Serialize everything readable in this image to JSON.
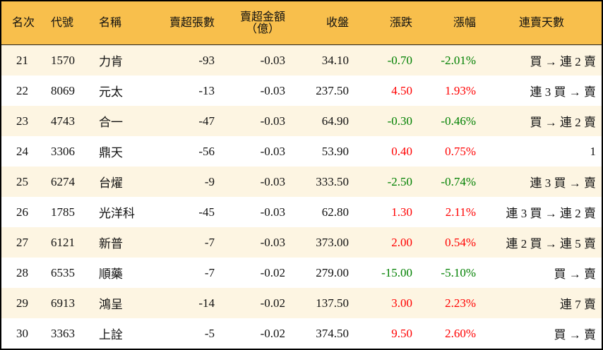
{
  "headers": {
    "rank": "名次",
    "code": "代號",
    "name": "名稱",
    "shares": "賣超張數",
    "amount": "賣超金額",
    "amount_unit": "（億）",
    "close": "收盤",
    "change": "漲跌",
    "pct": "漲幅",
    "streak": "連賣天數"
  },
  "colors": {
    "header_bg": "#f8bf4c",
    "stripe_bg": "#fdf5e2",
    "up": "#ff0000",
    "down": "#008000"
  },
  "rows": [
    {
      "rank": "21",
      "code": "1570",
      "name": "力肯",
      "shares": "-93",
      "amount": "-0.03",
      "close": "34.10",
      "change": "-0.70",
      "pct": "-2.01%",
      "streak": "買 → 連 2 賣",
      "dir": "down"
    },
    {
      "rank": "22",
      "code": "8069",
      "name": "元太",
      "shares": "-13",
      "amount": "-0.03",
      "close": "237.50",
      "change": "4.50",
      "pct": "1.93%",
      "streak": "連 3 買 → 賣",
      "dir": "up"
    },
    {
      "rank": "23",
      "code": "4743",
      "name": "合一",
      "shares": "-47",
      "amount": "-0.03",
      "close": "64.90",
      "change": "-0.30",
      "pct": "-0.46%",
      "streak": "買 → 連 2 賣",
      "dir": "down"
    },
    {
      "rank": "24",
      "code": "3306",
      "name": "鼎天",
      "shares": "-56",
      "amount": "-0.03",
      "close": "53.90",
      "change": "0.40",
      "pct": "0.75%",
      "streak": "1",
      "dir": "up"
    },
    {
      "rank": "25",
      "code": "6274",
      "name": "台燿",
      "shares": "-9",
      "amount": "-0.03",
      "close": "333.50",
      "change": "-2.50",
      "pct": "-0.74%",
      "streak": "連 3 買 → 賣",
      "dir": "down"
    },
    {
      "rank": "26",
      "code": "1785",
      "name": "光洋科",
      "shares": "-45",
      "amount": "-0.03",
      "close": "62.80",
      "change": "1.30",
      "pct": "2.11%",
      "streak": "連 3 買 → 連 2 賣",
      "dir": "up"
    },
    {
      "rank": "27",
      "code": "6121",
      "name": "新普",
      "shares": "-7",
      "amount": "-0.03",
      "close": "373.00",
      "change": "2.00",
      "pct": "0.54%",
      "streak": "連 2 買 → 連 5 賣",
      "dir": "up"
    },
    {
      "rank": "28",
      "code": "6535",
      "name": "順藥",
      "shares": "-7",
      "amount": "-0.02",
      "close": "279.00",
      "change": "-15.00",
      "pct": "-5.10%",
      "streak": "買 → 賣",
      "dir": "down"
    },
    {
      "rank": "29",
      "code": "6913",
      "name": "鴻呈",
      "shares": "-14",
      "amount": "-0.02",
      "close": "137.50",
      "change": "3.00",
      "pct": "2.23%",
      "streak": "連 7 賣",
      "dir": "up"
    },
    {
      "rank": "30",
      "code": "3363",
      "name": "上詮",
      "shares": "-5",
      "amount": "-0.02",
      "close": "374.50",
      "change": "9.50",
      "pct": "2.60%",
      "streak": "買 → 賣",
      "dir": "up"
    }
  ]
}
